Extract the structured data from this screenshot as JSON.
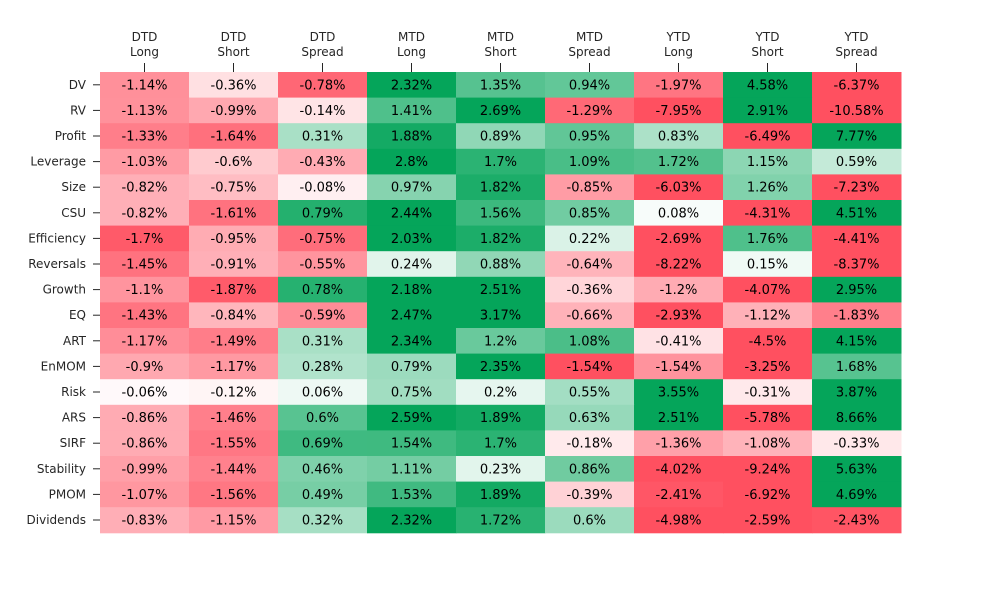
{
  "chart_data": {
    "type": "heatmap",
    "columns": [
      [
        "DTD",
        "Long"
      ],
      [
        "DTD",
        "Short"
      ],
      [
        "DTD",
        "Spread"
      ],
      [
        "MTD",
        "Long"
      ],
      [
        "MTD",
        "Short"
      ],
      [
        "MTD",
        "Spread"
      ],
      [
        "YTD",
        "Long"
      ],
      [
        "YTD",
        "Short"
      ],
      [
        "YTD",
        "Spread"
      ]
    ],
    "rows": [
      "DV",
      "RV",
      "Profit",
      "Leverage",
      "Size",
      "CSU",
      "Efficiency",
      "Reversals",
      "Growth",
      "EQ",
      "ART",
      "EnMOM",
      "Risk",
      "ARS",
      "SIRF",
      "Stability",
      "PMOM",
      "Dividends"
    ],
    "values": [
      [
        -1.14,
        -0.36,
        -0.78,
        2.32,
        1.35,
        0.94,
        -1.97,
        4.58,
        -6.37
      ],
      [
        -1.13,
        -0.99,
        -0.14,
        1.41,
        2.69,
        -1.29,
        -7.95,
        2.91,
        -10.58
      ],
      [
        -1.33,
        -1.64,
        0.31,
        1.88,
        0.89,
        0.95,
        0.83,
        -6.49,
        7.77
      ],
      [
        -1.03,
        -0.6,
        -0.43,
        2.8,
        1.7,
        1.09,
        1.72,
        1.15,
        0.59
      ],
      [
        -0.82,
        -0.75,
        -0.08,
        0.97,
        1.82,
        -0.85,
        -6.03,
        1.26,
        -7.23
      ],
      [
        -0.82,
        -1.61,
        0.79,
        2.44,
        1.56,
        0.85,
        0.08,
        -4.31,
        4.51
      ],
      [
        -1.7,
        -0.95,
        -0.75,
        2.03,
        1.82,
        0.22,
        -2.69,
        1.76,
        -4.41
      ],
      [
        -1.45,
        -0.91,
        -0.55,
        0.24,
        0.88,
        -0.64,
        -8.22,
        0.15,
        -8.37
      ],
      [
        -1.1,
        -1.87,
        0.78,
        2.18,
        2.51,
        -0.36,
        -1.2,
        -4.07,
        2.95
      ],
      [
        -1.43,
        -0.84,
        -0.59,
        2.47,
        3.17,
        -0.66,
        -2.93,
        -1.12,
        -1.83
      ],
      [
        -1.17,
        -1.49,
        0.31,
        2.34,
        1.2,
        1.08,
        -0.41,
        -4.5,
        4.15
      ],
      [
        -0.9,
        -1.17,
        0.28,
        0.79,
        2.35,
        -1.54,
        -1.54,
        -3.25,
        1.68
      ],
      [
        -0.06,
        -0.12,
        0.06,
        0.75,
        0.2,
        0.55,
        3.55,
        -0.31,
        3.87
      ],
      [
        -0.86,
        -1.46,
        0.6,
        2.59,
        1.89,
        0.63,
        2.51,
        -5.78,
        8.66
      ],
      [
        -0.86,
        -1.55,
        0.69,
        1.54,
        1.7,
        -0.18,
        -1.36,
        -1.08,
        -0.33
      ],
      [
        -0.99,
        -1.44,
        0.46,
        1.11,
        0.23,
        0.86,
        -4.02,
        -9.24,
        5.63
      ],
      [
        -1.07,
        -1.56,
        0.49,
        1.53,
        1.89,
        -0.39,
        -2.41,
        -6.92,
        4.69
      ],
      [
        -0.83,
        -1.15,
        0.32,
        2.32,
        1.72,
        0.6,
        -4.98,
        -2.59,
        -2.43
      ]
    ],
    "value_suffix": "%",
    "color_scale": {
      "negative": "#ff5060",
      "neutral": "#ffffff",
      "positive": "#05a55a"
    },
    "saturation_abs": [
      1.8,
      2.0,
      0.9,
      2.0,
      2.0,
      1.5,
      2.5,
      2.5,
      2.5
    ],
    "title": "",
    "xlabel": "",
    "ylabel": ""
  }
}
